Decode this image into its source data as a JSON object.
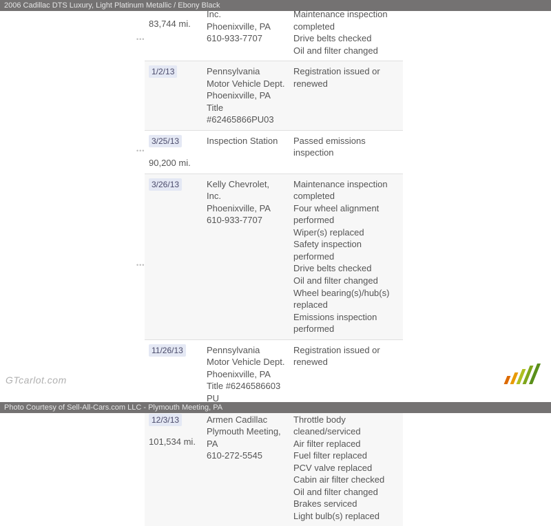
{
  "header": {
    "title": "2006 Cadillac DTS Luxury,  Light Platinum Metallic / Ebony Black"
  },
  "footer": {
    "text": "Photo Courtesy of Sell-All-Cars.com LLC - Plymouth Meeting, PA"
  },
  "watermark": "GTcarlot.com",
  "logo": {
    "colors": [
      "#dd6a00",
      "#e89a00",
      "#aebf1f",
      "#7fa61b",
      "#5a8f1a"
    ],
    "heights": [
      12,
      17,
      22,
      27,
      30
    ]
  },
  "records": [
    {
      "alt": false,
      "no_top": true,
      "date": "",
      "mileage": "83,744 mi.",
      "source": "Inc.\nPhoenixville, PA\n610-933-7707",
      "details": "Maintenance inspection completed\nDrive belts checked\nOil and filter changed"
    },
    {
      "alt": true,
      "date": "1/2/13",
      "mileage": "",
      "source": "Pennsylvania Motor Vehicle Dept.\nPhoenixville, PA\nTitle #62465866PU03",
      "details": "Registration issued or renewed"
    },
    {
      "alt": false,
      "date": "3/25/13",
      "mileage": "90,200 mi.",
      "source": "Inspection Station",
      "details": "Passed emissions inspection"
    },
    {
      "alt": true,
      "date": "3/26/13",
      "mileage": "",
      "source": "Kelly Chevrolet, Inc.\nPhoenixville, PA\n610-933-7707",
      "details": "Maintenance inspection completed\nFour wheel alignment performed\nWiper(s) replaced\nSafety inspection performed\nDrive belts checked\nOil and filter changed\nWheel bearing(s)/hub(s) replaced\nEmissions inspection performed"
    },
    {
      "alt": false,
      "date": "11/26/13",
      "mileage": "",
      "source": "Pennsylvania Motor Vehicle Dept.\nPhoenixville, PA\nTitle #6246586603 PU",
      "details": "Registration issued or renewed"
    },
    {
      "alt": true,
      "date": "12/3/13",
      "mileage": "101,534 mi.",
      "source": "Armen Cadillac\nPlymouth Meeting, PA\n610-272-5545",
      "details": "Throttle body cleaned/serviced\nAir filter replaced\nFuel filter replaced\nPCV valve replaced\nCabin air filter checked\nOil and filter changed\nBrakes serviced\nLight bulb(s) replaced"
    }
  ],
  "dots_positions": [
    36,
    198,
    364
  ]
}
